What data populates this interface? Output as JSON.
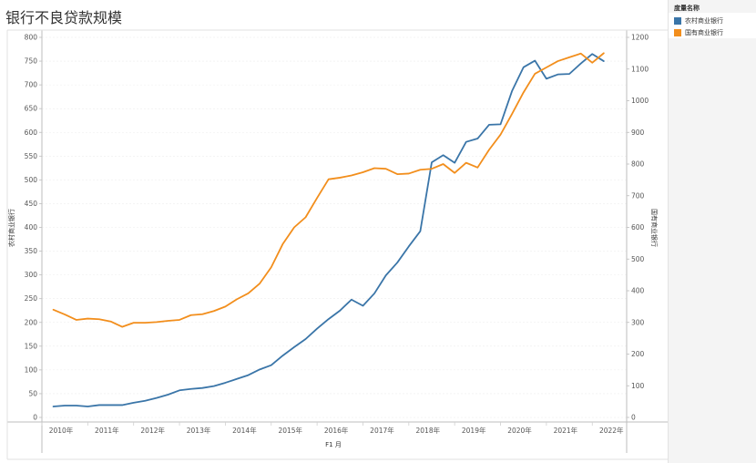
{
  "title": "银行不良贷款规模",
  "legend_title": "度量名称",
  "colors": {
    "rural": "#3a75a8",
    "state": "#f28e1c"
  },
  "chart_data": {
    "type": "line",
    "title": "银行不良贷款规模",
    "xlabel": "F1 月",
    "ylabel_left": "农村商业银行",
    "ylabel_right": "国有商业银行",
    "x_ticks": [
      "2010年",
      "2011年",
      "2012年",
      "2013年",
      "2014年",
      "2015年",
      "2016年",
      "2017年",
      "2018年",
      "2019年",
      "2020年",
      "2021年",
      "2022年"
    ],
    "y_left_ticks": [
      0,
      50,
      100,
      150,
      200,
      250,
      300,
      350,
      400,
      450,
      500,
      550,
      600,
      650,
      700,
      750,
      800
    ],
    "y_right_ticks": [
      0,
      100,
      200,
      300,
      400,
      500,
      600,
      700,
      800,
      900,
      1000,
      1100,
      1200
    ],
    "ylim_left": [
      0,
      800
    ],
    "ylim_right": [
      0,
      1200
    ],
    "xlim": [
      2010.0,
      2022.75
    ],
    "legend_position": "top-right",
    "grid": true,
    "series": [
      {
        "name": "农村商业银行",
        "axis": "left",
        "x": [
          2010.25,
          2010.5,
          2010.75,
          2011.0,
          2011.25,
          2011.5,
          2011.75,
          2012.0,
          2012.25,
          2012.5,
          2012.75,
          2013.0,
          2013.25,
          2013.5,
          2013.75,
          2014.0,
          2014.25,
          2014.5,
          2014.75,
          2015.0,
          2015.25,
          2015.5,
          2015.75,
          2016.0,
          2016.25,
          2016.5,
          2016.75,
          2017.0,
          2017.25,
          2017.5,
          2017.75,
          2018.0,
          2018.25,
          2018.5,
          2018.75,
          2019.0,
          2019.25,
          2019.5,
          2019.75,
          2020.0,
          2020.25,
          2020.5,
          2020.75,
          2021.0,
          2021.25,
          2021.5,
          2021.75,
          2022.0,
          2022.25
        ],
        "values": [
          23,
          25,
          25,
          23,
          26,
          26,
          26,
          31,
          35,
          41,
          48,
          57,
          60,
          62,
          66,
          73,
          81,
          89,
          101,
          110,
          130,
          148,
          165,
          187,
          207,
          225,
          248,
          235,
          261,
          299,
          326,
          360,
          392,
          537,
          552,
          536,
          580,
          587,
          616,
          617,
          687,
          737,
          751,
          713,
          722,
          723,
          745,
          765,
          750
        ]
      },
      {
        "name": "国有商业银行",
        "axis": "right",
        "x": [
          2010.25,
          2010.5,
          2010.75,
          2011.0,
          2011.25,
          2011.5,
          2011.75,
          2012.0,
          2012.25,
          2012.5,
          2012.75,
          2013.0,
          2013.25,
          2013.5,
          2013.75,
          2014.0,
          2014.25,
          2014.5,
          2014.75,
          2015.0,
          2015.25,
          2015.5,
          2015.75,
          2016.0,
          2016.25,
          2016.5,
          2016.75,
          2017.0,
          2017.25,
          2017.5,
          2017.75,
          2018.0,
          2018.25,
          2018.5,
          2018.75,
          2019.0,
          2019.25,
          2019.5,
          2019.75,
          2020.0,
          2020.25,
          2020.5,
          2020.75,
          2021.0,
          2021.25,
          2021.5,
          2021.75,
          2022.0,
          2022.25
        ],
        "values": [
          340,
          325,
          308,
          312,
          310,
          303,
          286,
          299,
          299,
          301,
          305,
          308,
          323,
          326,
          336,
          350,
          373,
          392,
          423,
          474,
          547,
          600,
          632,
          693,
          752,
          757,
          764,
          774,
          787,
          785,
          768,
          770,
          782,
          785,
          800,
          772,
          804,
          789,
          845,
          893,
          958,
          1026,
          1085,
          1105,
          1125,
          1137,
          1149,
          1120,
          1150
        ]
      }
    ]
  }
}
